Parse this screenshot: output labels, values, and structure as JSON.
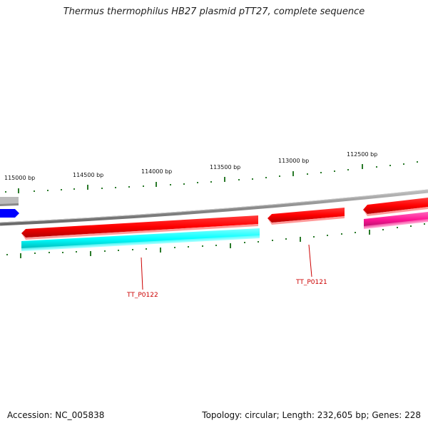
{
  "title": "Thermus thermophilus HB27 plasmid pTT27, complete sequence",
  "footer": {
    "accession": "Accession: NC_005838",
    "summary": "Topology: circular; Length: 232,605 bp; Genes: 228"
  },
  "ruler": {
    "labels": [
      "115000 bp",
      "114500 bp",
      "114000 bp",
      "113500 bp",
      "113000 bp",
      "112500 bp"
    ]
  },
  "genes": [
    {
      "name": "TT_P0122"
    },
    {
      "name": "TT_P0121"
    }
  ],
  "colors": {
    "backbone": "#888888",
    "gene_red": "#ff0000",
    "gene_cyan": "#00ffff",
    "gene_magenta": "#ff1493",
    "gene_blue": "#0000ff",
    "gene_grey": "#bbbbbb",
    "tick_green": "#2a7a2a",
    "label_red": "#cc0000"
  }
}
